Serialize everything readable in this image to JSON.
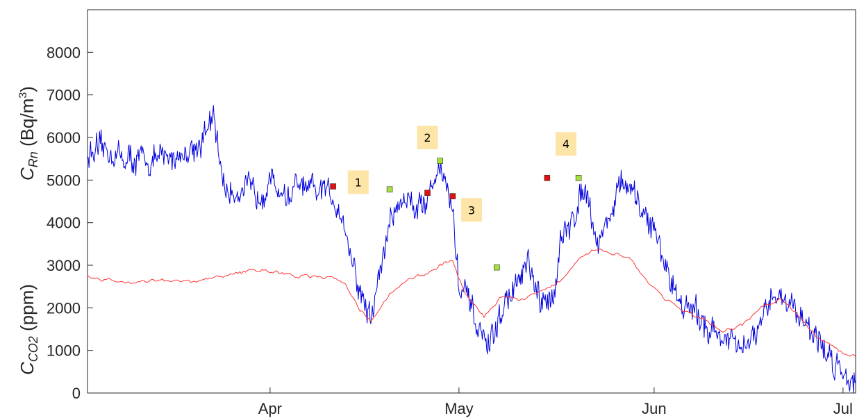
{
  "chart_data": {
    "type": "line",
    "title": "",
    "ylabel_top": {
      "C": "C",
      "sub": "Rn",
      "unit": " (Bq/m",
      "sup": "3",
      "close": ")"
    },
    "ylabel_bottom": {
      "C": "C",
      "sub": "CO2",
      "unit": " (ppm)"
    },
    "ylim": [
      0,
      9000
    ],
    "yticks": [
      0,
      1000,
      2000,
      3000,
      4000,
      5000,
      6000,
      7000,
      8000
    ],
    "ytick_labels": [
      "0",
      "1000",
      "2000",
      "3000",
      "4000",
      "5000",
      "6000",
      "7000",
      "8000"
    ],
    "xlim": [
      "2021-03-03",
      "2021-07-03"
    ],
    "xticks": [
      "2021-04-01",
      "2021-05-01",
      "2021-06-01",
      "2021-07-01"
    ],
    "xtick_labels": [
      "Apr",
      "May",
      "Jun",
      "Jul"
    ],
    "grid": false,
    "series": [
      {
        "color": "#0000dd",
        "x": [
          "2021-03-03",
          "2021-03-06",
          "2021-03-09",
          "2021-03-12",
          "2021-03-15",
          "2021-03-18",
          "2021-03-21",
          "2021-03-23",
          "2021-03-24",
          "2021-03-25",
          "2021-03-28",
          "2021-03-30",
          "2021-04-01",
          "2021-04-04",
          "2021-04-05",
          "2021-04-08",
          "2021-04-10",
          "2021-04-12",
          "2021-04-13",
          "2021-04-15",
          "2021-04-17",
          "2021-04-18",
          "2021-04-20",
          "2021-04-22",
          "2021-04-25",
          "2021-04-26",
          "2021-04-28",
          "2021-04-30",
          "2021-05-01",
          "2021-05-03",
          "2021-05-04",
          "2021-05-06",
          "2021-05-08",
          "2021-05-10",
          "2021-05-12",
          "2021-05-14",
          "2021-05-16",
          "2021-05-17",
          "2021-05-19",
          "2021-05-21",
          "2021-05-23",
          "2021-05-25",
          "2021-05-27",
          "2021-05-29",
          "2021-05-31",
          "2021-06-01",
          "2021-06-04",
          "2021-06-06",
          "2021-06-08",
          "2021-06-10",
          "2021-06-12",
          "2021-06-15",
          "2021-06-18",
          "2021-06-20",
          "2021-06-22",
          "2021-06-25",
          "2021-06-28",
          "2021-07-01",
          "2021-07-03"
        ],
        "y": [
          5600,
          5700,
          5500,
          5450,
          5500,
          5600,
          5900,
          6400,
          5500,
          4700,
          4800,
          4650,
          5000,
          4550,
          4850,
          4700,
          4750,
          4400,
          3800,
          2500,
          1700,
          2500,
          4000,
          4600,
          4400,
          4600,
          5400,
          4300,
          2500,
          2000,
          1400,
          1100,
          2000,
          2500,
          3000,
          2000,
          2300,
          3500,
          4000,
          5000,
          3500,
          4200,
          5000,
          4500,
          4100,
          3800,
          2500,
          2000,
          1800,
          1500,
          1300,
          1000,
          1500,
          2400,
          2200,
          1700,
          1000,
          500,
          300
        ]
      },
      {
        "color": "#ff3333",
        "x": [
          "2021-03-03",
          "2021-03-08",
          "2021-03-14",
          "2021-03-20",
          "2021-03-26",
          "2021-03-31",
          "2021-04-05",
          "2021-04-10",
          "2021-04-13",
          "2021-04-15",
          "2021-04-17",
          "2021-04-20",
          "2021-04-23",
          "2021-04-26",
          "2021-04-28",
          "2021-04-30",
          "2021-05-02",
          "2021-05-05",
          "2021-05-08",
          "2021-05-11",
          "2021-05-14",
          "2021-05-17",
          "2021-05-20",
          "2021-05-23",
          "2021-05-25",
          "2021-05-28",
          "2021-05-31",
          "2021-06-03",
          "2021-06-06",
          "2021-06-09",
          "2021-06-12",
          "2021-06-15",
          "2021-06-18",
          "2021-06-21",
          "2021-06-24",
          "2021-06-27",
          "2021-06-30",
          "2021-07-03"
        ],
        "y": [
          2750,
          2600,
          2650,
          2600,
          2800,
          2900,
          2750,
          2700,
          2600,
          2000,
          1700,
          2300,
          2700,
          2800,
          3000,
          3100,
          2300,
          1800,
          2300,
          2200,
          2400,
          2600,
          3100,
          3400,
          3300,
          3200,
          2600,
          2200,
          1900,
          1700,
          1400,
          1600,
          2000,
          2200,
          1800,
          1300,
          1000,
          850
        ]
      }
    ],
    "markers": [
      {
        "x": "2021-04-11",
        "y": 4850,
        "color": "#e01010"
      },
      {
        "x": "2021-04-20",
        "y": 4780,
        "color": "#a6e23a"
      },
      {
        "x": "2021-04-26",
        "y": 4700,
        "color": "#e01010"
      },
      {
        "x": "2021-04-28",
        "y": 5450,
        "color": "#a6e23a"
      },
      {
        "x": "2021-04-30",
        "y": 4620,
        "color": "#e01010"
      },
      {
        "x": "2021-05-07",
        "y": 2950,
        "color": "#a6e23a"
      },
      {
        "x": "2021-05-15",
        "y": 5050,
        "color": "#e01010"
      },
      {
        "x": "2021-05-20",
        "y": 5050,
        "color": "#a6e23a"
      }
    ],
    "annotations": [
      {
        "text": "1",
        "x": "2021-04-15",
        "y": 4950
      },
      {
        "text": "2",
        "x": "2021-04-26",
        "y": 6000
      },
      {
        "text": "3",
        "x": "2021-05-03",
        "y": 4300
      },
      {
        "text": "4",
        "x": "2021-05-18",
        "y": 5850
      }
    ],
    "annotation_fill": "#fde5a8"
  }
}
